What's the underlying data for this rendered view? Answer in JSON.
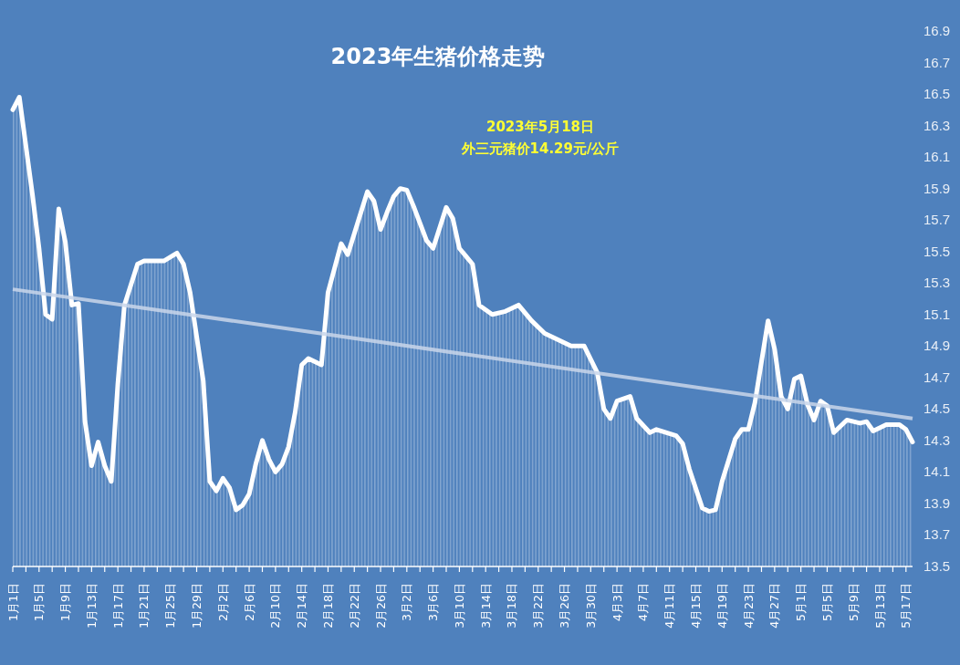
{
  "chart_data": {
    "type": "area",
    "title": "2023年生猪价格走势",
    "annotations": [
      "2023年5月18日",
      "外三元猪价14.29元/公斤"
    ],
    "series": [
      {
        "color": "#ffffff",
        "x": [
          "2023-01-01",
          "2023-01-02",
          "2023-01-03",
          "2023-01-04",
          "2023-01-05",
          "2023-01-06",
          "2023-01-07",
          "2023-01-08",
          "2023-01-09",
          "2023-01-10",
          "2023-01-11",
          "2023-01-12",
          "2023-01-13",
          "2023-01-14",
          "2023-01-15",
          "2023-01-16",
          "2023-01-17",
          "2023-01-18",
          "2023-01-20",
          "2023-01-21",
          "2023-01-24",
          "2023-01-26",
          "2023-01-27",
          "2023-01-28",
          "2023-01-30",
          "2023-01-31",
          "2023-02-01",
          "2023-02-02",
          "2023-02-03",
          "2023-02-04",
          "2023-02-05",
          "2023-02-06",
          "2023-02-07",
          "2023-02-08",
          "2023-02-09",
          "2023-02-10",
          "2023-02-11",
          "2023-02-12",
          "2023-02-13",
          "2023-02-14",
          "2023-02-15",
          "2023-02-16",
          "2023-02-17",
          "2023-02-18",
          "2023-02-20",
          "2023-02-21",
          "2023-02-24",
          "2023-02-25",
          "2023-02-26",
          "2023-02-27",
          "2023-02-28",
          "2023-03-01",
          "2023-03-02",
          "2023-03-03",
          "2023-03-05",
          "2023-03-06",
          "2023-03-08",
          "2023-03-09",
          "2023-03-10",
          "2023-03-12",
          "2023-03-13",
          "2023-03-15",
          "2023-03-17",
          "2023-03-19",
          "2023-03-21",
          "2023-03-23",
          "2023-03-27",
          "2023-03-29",
          "2023-03-31",
          "2023-04-01",
          "2023-04-02",
          "2023-04-03",
          "2023-04-05",
          "2023-04-06",
          "2023-04-08",
          "2023-04-09",
          "2023-04-12",
          "2023-04-13",
          "2023-04-14",
          "2023-04-16",
          "2023-04-17",
          "2023-04-18",
          "2023-04-19",
          "2023-04-21",
          "2023-04-22",
          "2023-04-23",
          "2023-04-24",
          "2023-04-26",
          "2023-04-27",
          "2023-04-28",
          "2023-04-29",
          "2023-04-30",
          "2023-05-01",
          "2023-05-02",
          "2023-05-03",
          "2023-05-04",
          "2023-05-05",
          "2023-05-06",
          "2023-05-08",
          "2023-05-10",
          "2023-05-11",
          "2023-05-12",
          "2023-05-14",
          "2023-05-16",
          "2023-05-17",
          "2023-05-18"
        ],
        "values": [
          16.4,
          16.48,
          16.17,
          15.86,
          15.52,
          15.1,
          15.07,
          15.77,
          15.56,
          15.16,
          15.17,
          14.42,
          14.14,
          14.29,
          14.14,
          14.04,
          14.66,
          15.16,
          15.42,
          15.44,
          15.44,
          15.49,
          15.42,
          15.24,
          14.68,
          14.04,
          13.98,
          14.06,
          14.0,
          13.86,
          13.89,
          13.96,
          14.15,
          14.3,
          14.18,
          14.1,
          14.15,
          14.26,
          14.48,
          14.78,
          14.82,
          14.8,
          14.78,
          15.24,
          15.55,
          15.48,
          15.88,
          15.82,
          15.64,
          15.75,
          15.85,
          15.9,
          15.89,
          15.79,
          15.57,
          15.52,
          15.78,
          15.71,
          15.52,
          15.42,
          15.16,
          15.1,
          15.12,
          15.16,
          15.06,
          14.98,
          14.9,
          14.9,
          14.73,
          14.5,
          14.44,
          14.55,
          14.58,
          14.44,
          14.35,
          14.37,
          14.33,
          14.28,
          14.12,
          13.87,
          13.85,
          13.86,
          14.04,
          14.31,
          14.37,
          14.37,
          14.54,
          15.06,
          14.88,
          14.58,
          14.5,
          14.69,
          14.71,
          14.53,
          14.43,
          14.55,
          14.52,
          14.35,
          14.43,
          14.41,
          14.42,
          14.36,
          14.4,
          14.4,
          14.37,
          14.29
        ]
      },
      {
        "type": "line",
        "color": "#c9d6ea",
        "x": [
          "2023-01-01",
          "2023-05-18"
        ],
        "values": [
          15.26,
          14.44
        ]
      }
    ],
    "xlim": [
      "2023-01-01",
      "2023-05-18"
    ],
    "xticks": [
      {
        "value": "2023-01-01",
        "label": "1月1日"
      },
      {
        "value": "2023-01-03",
        "label": null
      },
      {
        "value": "2023-01-05",
        "label": "1月5日"
      },
      {
        "value": "2023-01-07",
        "label": null
      },
      {
        "value": "2023-01-09",
        "label": "1月9日"
      },
      {
        "value": "2023-01-11",
        "label": null
      },
      {
        "value": "2023-01-13",
        "label": "1月13日"
      },
      {
        "value": "2023-01-15",
        "label": null
      },
      {
        "value": "2023-01-17",
        "label": "1月17日"
      },
      {
        "value": "2023-01-19",
        "label": null
      },
      {
        "value": "2023-01-21",
        "label": "1月21日"
      },
      {
        "value": "2023-01-23",
        "label": null
      },
      {
        "value": "2023-01-25",
        "label": "1月25日"
      },
      {
        "value": "2023-01-27",
        "label": null
      },
      {
        "value": "2023-01-29",
        "label": "1月29日"
      },
      {
        "value": "2023-01-31",
        "label": null
      },
      {
        "value": "2023-02-02",
        "label": "2月2日"
      },
      {
        "value": "2023-02-04",
        "label": null
      },
      {
        "value": "2023-02-06",
        "label": "2月6日"
      },
      {
        "value": "2023-02-08",
        "label": null
      },
      {
        "value": "2023-02-10",
        "label": "2月10日"
      },
      {
        "value": "2023-02-12",
        "label": null
      },
      {
        "value": "2023-02-14",
        "label": "2月14日"
      },
      {
        "value": "2023-02-16",
        "label": null
      },
      {
        "value": "2023-02-18",
        "label": "2月18日"
      },
      {
        "value": "2023-02-20",
        "label": null
      },
      {
        "value": "2023-02-22",
        "label": "2月22日"
      },
      {
        "value": "2023-02-24",
        "label": null
      },
      {
        "value": "2023-02-26",
        "label": "2月26日"
      },
      {
        "value": "2023-02-28",
        "label": null
      },
      {
        "value": "2023-03-02",
        "label": "3月2日"
      },
      {
        "value": "2023-03-04",
        "label": null
      },
      {
        "value": "2023-03-06",
        "label": "3月6日"
      },
      {
        "value": "2023-03-08",
        "label": null
      },
      {
        "value": "2023-03-10",
        "label": "3月10日"
      },
      {
        "value": "2023-03-12",
        "label": null
      },
      {
        "value": "2023-03-14",
        "label": "3月14日"
      },
      {
        "value": "2023-03-16",
        "label": null
      },
      {
        "value": "2023-03-18",
        "label": "3月18日"
      },
      {
        "value": "2023-03-20",
        "label": null
      },
      {
        "value": "2023-03-22",
        "label": "3月22日"
      },
      {
        "value": "2023-03-24",
        "label": null
      },
      {
        "value": "2023-03-26",
        "label": "3月26日"
      },
      {
        "value": "2023-03-28",
        "label": null
      },
      {
        "value": "2023-03-30",
        "label": "3月30日"
      },
      {
        "value": "2023-04-01",
        "label": null
      },
      {
        "value": "2023-04-03",
        "label": "4月3日"
      },
      {
        "value": "2023-04-05",
        "label": null
      },
      {
        "value": "2023-04-07",
        "label": "4月7日"
      },
      {
        "value": "2023-04-09",
        "label": null
      },
      {
        "value": "2023-04-11",
        "label": "4月11日"
      },
      {
        "value": "2023-04-13",
        "label": null
      },
      {
        "value": "2023-04-15",
        "label": "4月15日"
      },
      {
        "value": "2023-04-17",
        "label": null
      },
      {
        "value": "2023-04-19",
        "label": "4月19日"
      },
      {
        "value": "2023-04-21",
        "label": null
      },
      {
        "value": "2023-04-23",
        "label": "4月23日"
      },
      {
        "value": "2023-04-25",
        "label": null
      },
      {
        "value": "2023-04-27",
        "label": "4月27日"
      },
      {
        "value": "2023-04-29",
        "label": null
      },
      {
        "value": "2023-05-01",
        "label": "5月1日"
      },
      {
        "value": "2023-05-03",
        "label": null
      },
      {
        "value": "2023-05-05",
        "label": "5月5日"
      },
      {
        "value": "2023-05-07",
        "label": null
      },
      {
        "value": "2023-05-09",
        "label": "5月9日"
      },
      {
        "value": "2023-05-11",
        "label": null
      },
      {
        "value": "2023-05-13",
        "label": "5月13日"
      },
      {
        "value": "2023-05-15",
        "label": null
      },
      {
        "value": "2023-05-17",
        "label": "5月17日"
      }
    ],
    "ylim": [
      13.5,
      16.9
    ],
    "yticks": [
      13.5,
      13.7,
      13.9,
      14.1,
      14.3,
      14.5,
      14.7,
      14.9,
      15.1,
      15.3,
      15.5,
      15.7,
      15.9,
      16.1,
      16.3,
      16.5,
      16.7,
      16.9
    ],
    "grid": false
  }
}
